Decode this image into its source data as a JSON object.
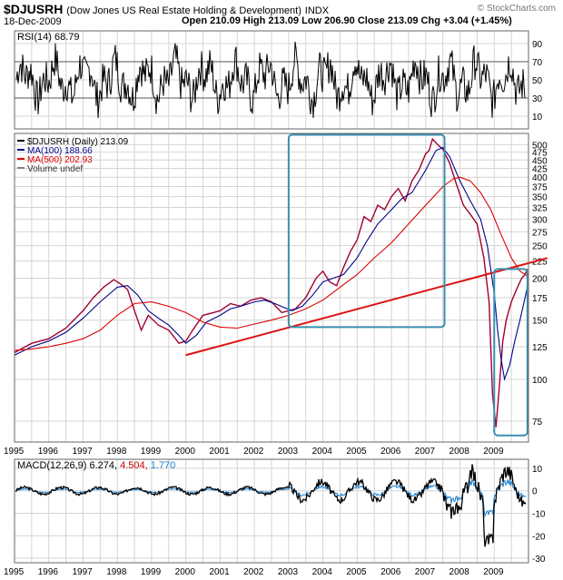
{
  "header": {
    "symbol": "$DJUSRH",
    "name": "(Dow Jones US Real Estate Holding & Development)",
    "exchange": "INDX",
    "date": "18-Dec-2009",
    "quote_line": "Open 210.09  High 213.09  Low 206.90  Close 213.09  Chg +3.04 (+1.45%)",
    "watermark": "© StockCharts.com"
  },
  "chart_data": [
    {
      "type": "line",
      "title": "RSI(14) 68.79",
      "panel": "rsi",
      "ylim": [
        0,
        100
      ],
      "y_ticks": [
        10,
        30,
        50,
        70,
        90
      ],
      "guide_levels": [
        30,
        70
      ],
      "last_value": 68.79
    },
    {
      "type": "line",
      "panel": "price",
      "title": "$DJUSRH (Daily) 213.09",
      "yscale": "log",
      "ylim": [
        65,
        540
      ],
      "y_ticks": [
        75,
        100,
        125,
        150,
        175,
        200,
        225,
        250,
        275,
        300,
        325,
        350,
        375,
        400,
        425,
        450,
        475,
        500
      ],
      "x_ticks": [
        "1995",
        "1996",
        "1997",
        "1998",
        "1999",
        "2000",
        "2001",
        "2002",
        "2003",
        "2004",
        "2005",
        "2006",
        "2007",
        "2008",
        "2009"
      ],
      "legend": [
        {
          "label": "$DJUSRH (Daily) 213.09",
          "color": "#000000"
        },
        {
          "label": "MA(100) 188.66",
          "color": "#00008b"
        },
        {
          "label": "MA(500) 202.93",
          "color": "#dd0000"
        },
        {
          "label": "Volume undef",
          "color": "#808080"
        }
      ],
      "series": [
        {
          "name": "$DJUSRH",
          "color": "#a00030",
          "x": [
            1995.0,
            1995.5,
            1996.0,
            1996.5,
            1997.0,
            1997.3,
            1997.6,
            1997.9,
            1998.1,
            1998.3,
            1998.5,
            1998.7,
            1998.9,
            1999.2,
            1999.5,
            1999.8,
            2000.0,
            2000.2,
            2000.5,
            2000.8,
            2001.0,
            2001.3,
            2001.6,
            2001.9,
            2002.2,
            2002.5,
            2002.8,
            2003.0,
            2003.2,
            2003.5,
            2003.8,
            2004.0,
            2004.2,
            2004.4,
            2004.6,
            2004.8,
            2005.0,
            2005.2,
            2005.4,
            2005.6,
            2005.8,
            2006.0,
            2006.2,
            2006.4,
            2006.6,
            2006.8,
            2007.0,
            2007.1,
            2007.2,
            2007.35,
            2007.5,
            2007.7,
            2007.9,
            2008.1,
            2008.3,
            2008.5,
            2008.7,
            2008.85,
            2008.95,
            2009.05,
            2009.15,
            2009.25,
            2009.35,
            2009.5,
            2009.6,
            2009.7,
            2009.8,
            2009.9,
            2009.97
          ],
          "values": [
            120,
            128,
            132,
            142,
            160,
            175,
            188,
            198,
            192,
            185,
            160,
            140,
            155,
            145,
            140,
            128,
            130,
            140,
            155,
            158,
            160,
            168,
            165,
            172,
            175,
            170,
            158,
            160,
            162,
            175,
            200,
            210,
            195,
            190,
            215,
            240,
            260,
            305,
            295,
            330,
            320,
            350,
            370,
            340,
            390,
            420,
            470,
            480,
            520,
            500,
            485,
            440,
            380,
            330,
            310,
            290,
            230,
            170,
            90,
            72,
            95,
            130,
            150,
            170,
            180,
            190,
            200,
            205,
            213.09
          ]
        },
        {
          "name": "MA(100)",
          "color": "#00008b",
          "x": [
            1995.0,
            1995.5,
            1996.0,
            1996.5,
            1997.0,
            1997.5,
            1998.0,
            1998.3,
            1998.6,
            1998.9,
            1999.2,
            1999.5,
            1999.8,
            2000.0,
            2000.3,
            2000.6,
            2001.0,
            2001.3,
            2001.6,
            2002.0,
            2002.3,
            2002.6,
            2002.9,
            2003.1,
            2003.4,
            2003.7,
            2004.0,
            2004.3,
            2004.6,
            2005.0,
            2005.3,
            2005.6,
            2006.0,
            2006.3,
            2006.6,
            2007.0,
            2007.3,
            2007.5,
            2007.7,
            2008.0,
            2008.3,
            2008.6,
            2008.8,
            2009.0,
            2009.1,
            2009.2,
            2009.3,
            2009.45,
            2009.6,
            2009.75,
            2009.9,
            2009.97
          ],
          "values": [
            118,
            125,
            130,
            138,
            152,
            170,
            188,
            190,
            178,
            160,
            152,
            145,
            135,
            128,
            135,
            148,
            155,
            162,
            165,
            170,
            172,
            168,
            163,
            160,
            165,
            178,
            195,
            200,
            205,
            230,
            260,
            290,
            320,
            345,
            360,
            420,
            480,
            490,
            460,
            390,
            340,
            300,
            250,
            180,
            140,
            115,
            100,
            110,
            130,
            150,
            175,
            188.66
          ]
        },
        {
          "name": "MA(500)",
          "color": "#dd0000",
          "x": [
            1995.0,
            1995.5,
            1996.0,
            1996.5,
            1997.0,
            1997.5,
            1998.0,
            1998.5,
            1999.0,
            1999.5,
            2000.0,
            2000.5,
            2001.0,
            2001.5,
            2002.0,
            2002.5,
            2003.0,
            2003.5,
            2004.0,
            2004.5,
            2005.0,
            2005.5,
            2006.0,
            2006.5,
            2007.0,
            2007.5,
            2007.8,
            2008.0,
            2008.3,
            2008.6,
            2008.9,
            2009.2,
            2009.5,
            2009.75,
            2009.97
          ],
          "values": [
            122,
            123,
            125,
            128,
            132,
            140,
            155,
            168,
            170,
            165,
            158,
            148,
            143,
            142,
            146,
            150,
            155,
            162,
            172,
            188,
            205,
            230,
            255,
            290,
            330,
            375,
            395,
            400,
            390,
            360,
            320,
            270,
            230,
            210,
            202.93
          ]
        }
      ],
      "annotations": [
        {
          "kind": "trendline",
          "from": [
            2000.0,
            118
          ],
          "to": [
            2009.97,
            224
          ],
          "color": "#dd1010"
        },
        {
          "kind": "box",
          "from": [
            2003.0,
            143
          ],
          "to": [
            2007.55,
            535
          ],
          "color": "#3a8fb0"
        },
        {
          "kind": "box",
          "from": [
            2009.0,
            68
          ],
          "to": [
            2009.97,
            213
          ],
          "color": "#3a8fb0"
        }
      ]
    },
    {
      "type": "line",
      "panel": "macd",
      "title": "MACD(12,26,9)",
      "values_text": [
        "6.274,",
        "4.504,",
        "1.770"
      ],
      "value_colors": [
        "#000000",
        "#cc0000",
        "#1a7fd0"
      ],
      "ylim": [
        -32,
        14
      ],
      "y_ticks": [
        10,
        0,
        -10,
        -20,
        -30
      ],
      "x_ticks": [
        "1995",
        "1996",
        "1997",
        "1998",
        "1999",
        "2000",
        "2001",
        "2002",
        "2003",
        "2004",
        "2005",
        "2006",
        "2007",
        "2008",
        "2009"
      ]
    }
  ]
}
